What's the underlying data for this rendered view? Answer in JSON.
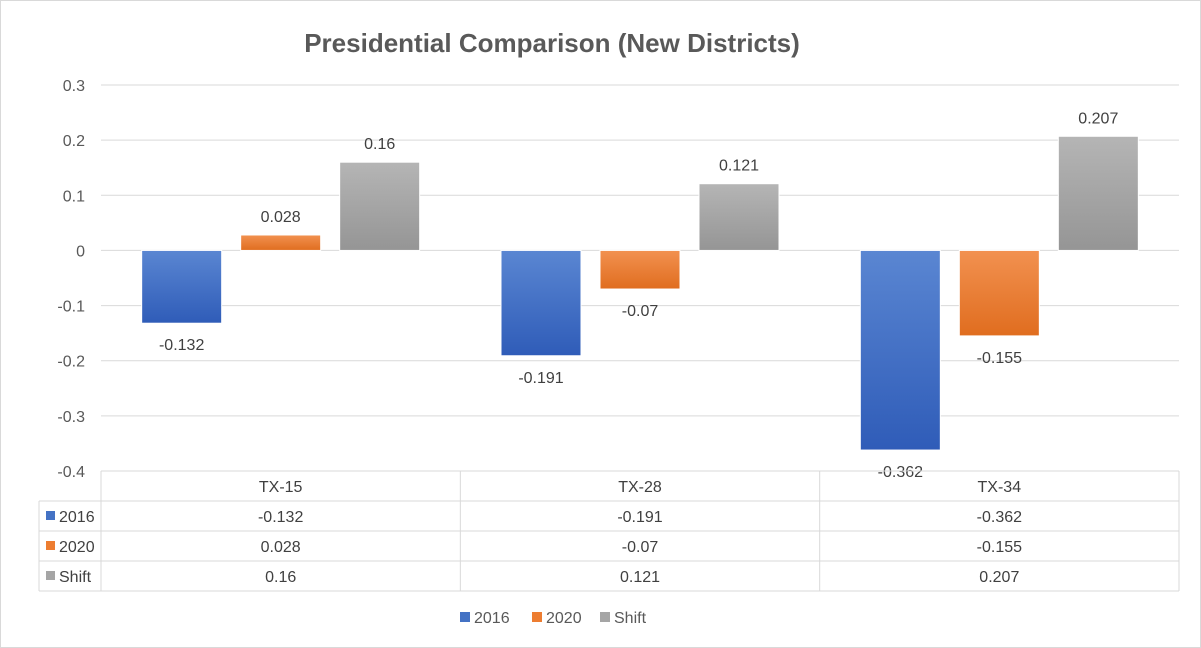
{
  "chart_data": {
    "type": "bar",
    "title": "Presidential Comparison (New Districts)",
    "categories": [
      "TX-15",
      "TX-28",
      "TX-34"
    ],
    "series": [
      {
        "name": "2016",
        "values": [
          -0.132,
          -0.191,
          -0.362
        ],
        "labels": [
          "-0.132",
          "-0.191",
          "-0.362"
        ],
        "color": "#4472c4"
      },
      {
        "name": "2020",
        "values": [
          0.028,
          -0.07,
          -0.155
        ],
        "labels": [
          "0.028",
          "-0.07",
          "-0.155"
        ],
        "color": "#ed7d31"
      },
      {
        "name": "Shift",
        "values": [
          0.16,
          0.121,
          0.207
        ],
        "labels": [
          "0.16",
          "0.121",
          "0.207"
        ],
        "color": "#a5a5a5"
      }
    ],
    "ylim": [
      -0.4,
      0.3
    ],
    "yticks": [
      0.3,
      0.2,
      0.1,
      0,
      -0.1,
      -0.2,
      -0.3,
      -0.4
    ],
    "ytick_labels": [
      "0.3",
      "0.2",
      "0.1",
      "0",
      "-0.1",
      "-0.2",
      "-0.3",
      "-0.4"
    ],
    "grid": true,
    "legend": "bottom",
    "data_table": true
  }
}
